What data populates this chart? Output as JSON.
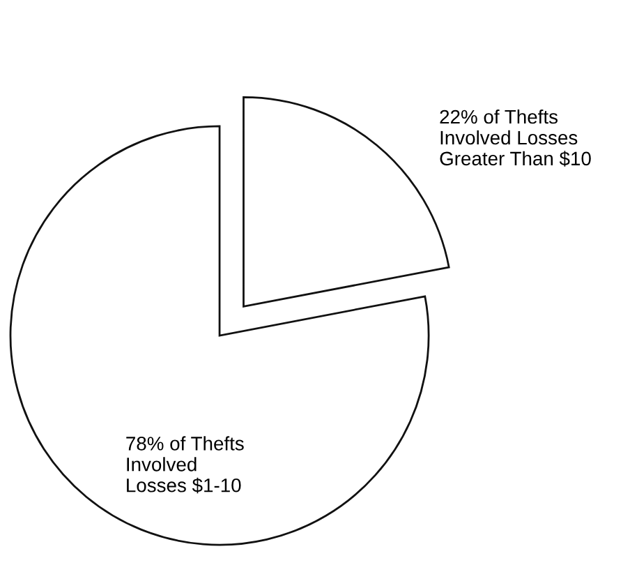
{
  "chart_data": {
    "type": "pie",
    "categories": [
      "22% of Thefts\nInvolved Losses\nGreater Than $10",
      "78% of Thefts\nInvolved\nLosses $1-10"
    ],
    "values": [
      22,
      78
    ],
    "colors": [
      "#ffffff",
      "#ffffff"
    ],
    "legend": false
  }
}
